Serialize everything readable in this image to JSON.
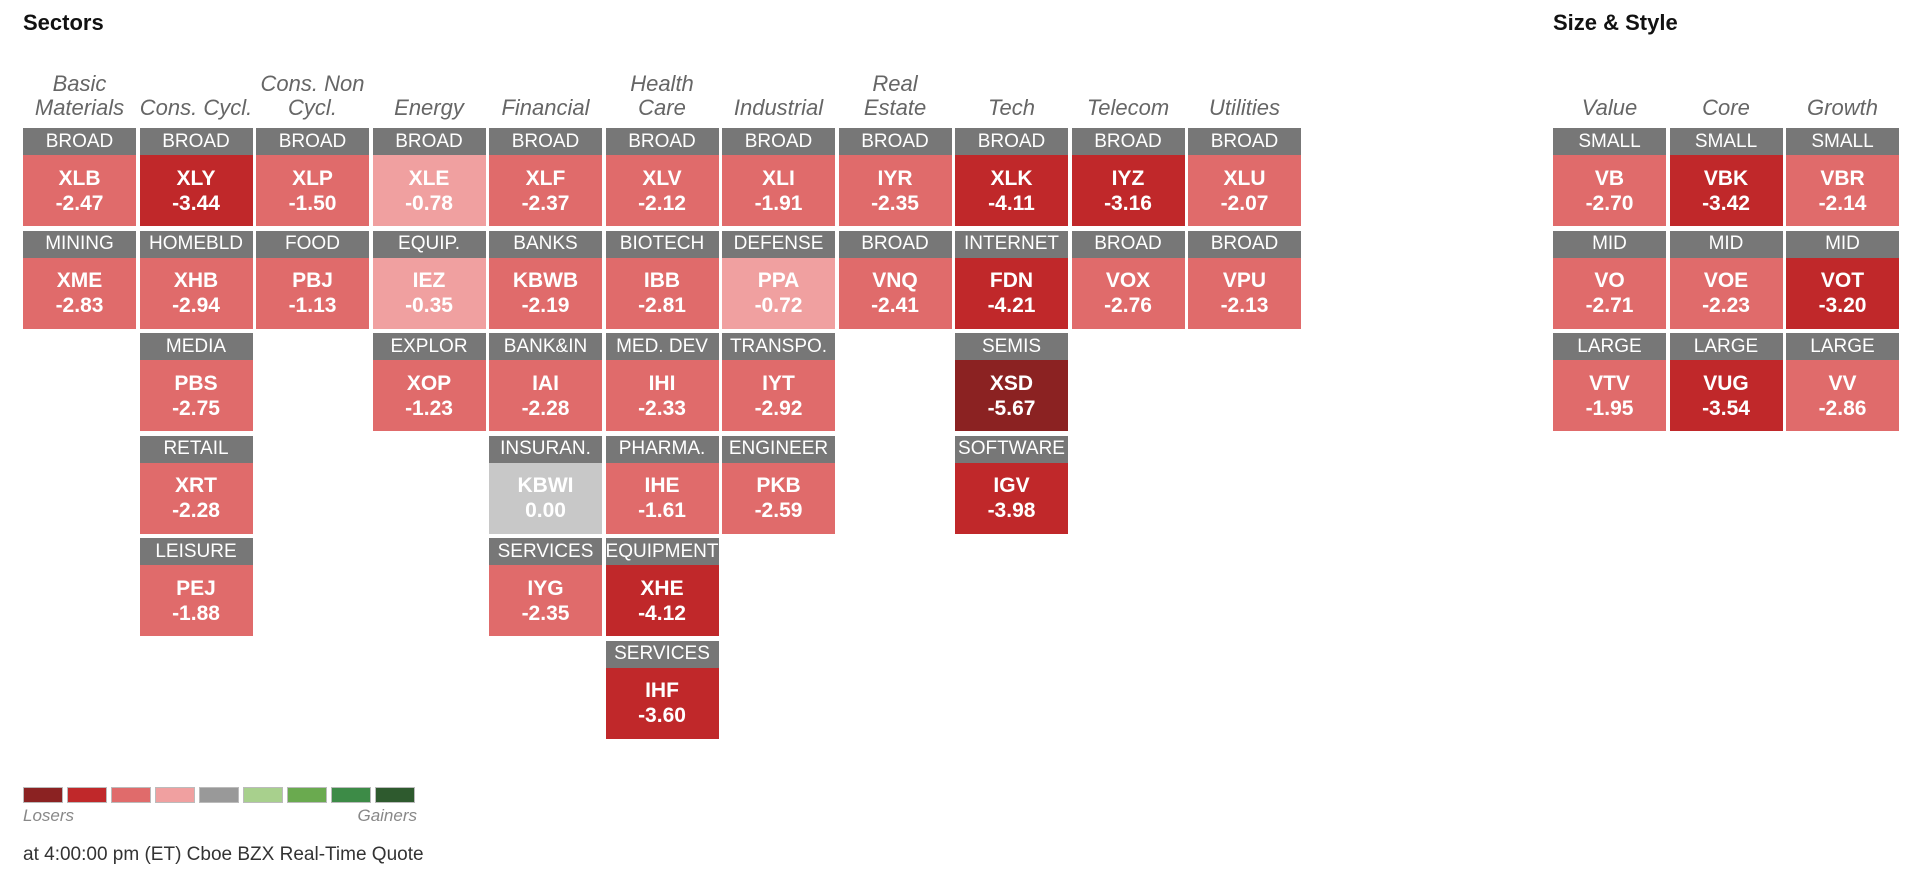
{
  "sectors_title": "Sectors",
  "size_style_title": "Size & Style",
  "sector_columns": [
    {
      "name": "Basic Materials",
      "tiles": [
        {
          "label": "BROAD",
          "ticker": "XLB",
          "change": "-2.47",
          "level": 2
        },
        {
          "label": "MINING",
          "ticker": "XME",
          "change": "-2.83",
          "level": 2
        }
      ]
    },
    {
      "name": "Cons. Cycl.",
      "tiles": [
        {
          "label": "BROAD",
          "ticker": "XLY",
          "change": "-3.44",
          "level": 3
        },
        {
          "label": "HOMEBLD",
          "ticker": "XHB",
          "change": "-2.94",
          "level": 2
        },
        {
          "label": "MEDIA",
          "ticker": "PBS",
          "change": "-2.75",
          "level": 2
        },
        {
          "label": "RETAIL",
          "ticker": "XRT",
          "change": "-2.28",
          "level": 2
        },
        {
          "label": "LEISURE",
          "ticker": "PEJ",
          "change": "-1.88",
          "level": 2
        }
      ]
    },
    {
      "name": "Cons. Non Cycl.",
      "tiles": [
        {
          "label": "BROAD",
          "ticker": "XLP",
          "change": "-1.50",
          "level": 2
        },
        {
          "label": "FOOD",
          "ticker": "PBJ",
          "change": "-1.13",
          "level": 2
        }
      ]
    },
    {
      "name": "Energy",
      "tiles": [
        {
          "label": "BROAD",
          "ticker": "XLE",
          "change": "-0.78",
          "level": 1
        },
        {
          "label": "EQUIP.",
          "ticker": "IEZ",
          "change": "-0.35",
          "level": 1
        },
        {
          "label": "EXPLOR",
          "ticker": "XOP",
          "change": "-1.23",
          "level": 2
        }
      ]
    },
    {
      "name": "Financial",
      "tiles": [
        {
          "label": "BROAD",
          "ticker": "XLF",
          "change": "-2.37",
          "level": 2
        },
        {
          "label": "BANKS",
          "ticker": "KBWB",
          "change": "-2.19",
          "level": 2
        },
        {
          "label": "BANK&IN",
          "ticker": "IAI",
          "change": "-2.28",
          "level": 2
        },
        {
          "label": "INSURAN.",
          "ticker": "KBWI",
          "change": "0.00",
          "level": 0
        },
        {
          "label": "SERVICES",
          "ticker": "IYG",
          "change": "-2.35",
          "level": 2
        }
      ]
    },
    {
      "name": "Health Care",
      "tiles": [
        {
          "label": "BROAD",
          "ticker": "XLV",
          "change": "-2.12",
          "level": 2
        },
        {
          "label": "BIOTECH",
          "ticker": "IBB",
          "change": "-2.81",
          "level": 2
        },
        {
          "label": "MED. DEV",
          "ticker": "IHI",
          "change": "-2.33",
          "level": 2
        },
        {
          "label": "PHARMA.",
          "ticker": "IHE",
          "change": "-1.61",
          "level": 2
        },
        {
          "label": "EQUIPMENT",
          "ticker": "XHE",
          "change": "-4.12",
          "level": 3
        },
        {
          "label": "SERVICES",
          "ticker": "IHF",
          "change": "-3.60",
          "level": 3
        }
      ]
    },
    {
      "name": "Industrial",
      "tiles": [
        {
          "label": "BROAD",
          "ticker": "XLI",
          "change": "-1.91",
          "level": 2
        },
        {
          "label": "DEFENSE",
          "ticker": "PPA",
          "change": "-0.72",
          "level": 1
        },
        {
          "label": "TRANSPO.",
          "ticker": "IYT",
          "change": "-2.92",
          "level": 2
        },
        {
          "label": "ENGINEER",
          "ticker": "PKB",
          "change": "-2.59",
          "level": 2
        }
      ]
    },
    {
      "name": "Real Estate",
      "tiles": [
        {
          "label": "BROAD",
          "ticker": "IYR",
          "change": "-2.35",
          "level": 2
        },
        {
          "label": "BROAD",
          "ticker": "VNQ",
          "change": "-2.41",
          "level": 2
        }
      ]
    },
    {
      "name": "Tech",
      "tiles": [
        {
          "label": "BROAD",
          "ticker": "XLK",
          "change": "-4.11",
          "level": 3
        },
        {
          "label": "INTERNET",
          "ticker": "FDN",
          "change": "-4.21",
          "level": 3
        },
        {
          "label": "SEMIS",
          "ticker": "XSD",
          "change": "-5.67",
          "level": 4
        },
        {
          "label": "SOFTWARE",
          "ticker": "IGV",
          "change": "-3.98",
          "level": 3
        }
      ]
    },
    {
      "name": "Telecom",
      "tiles": [
        {
          "label": "BROAD",
          "ticker": "IYZ",
          "change": "-3.16",
          "level": 3
        },
        {
          "label": "BROAD",
          "ticker": "VOX",
          "change": "-2.76",
          "level": 2
        }
      ]
    },
    {
      "name": "Utilities",
      "tiles": [
        {
          "label": "BROAD",
          "ticker": "XLU",
          "change": "-2.07",
          "level": 2
        },
        {
          "label": "BROAD",
          "ticker": "VPU",
          "change": "-2.13",
          "level": 2
        }
      ]
    }
  ],
  "style_columns": [
    {
      "name": "Value",
      "tiles": [
        {
          "label": "SMALL",
          "ticker": "VB",
          "change": "-2.70",
          "level": 2
        },
        {
          "label": "MID",
          "ticker": "VO",
          "change": "-2.71",
          "level": 2
        },
        {
          "label": "LARGE",
          "ticker": "VTV",
          "change": "-1.95",
          "level": 2
        }
      ]
    },
    {
      "name": "Core",
      "tiles": [
        {
          "label": "SMALL",
          "ticker": "VBK",
          "change": "-3.42",
          "level": 3
        },
        {
          "label": "MID",
          "ticker": "VOE",
          "change": "-2.23",
          "level": 2
        },
        {
          "label": "LARGE",
          "ticker": "VUG",
          "change": "-3.54",
          "level": 3
        }
      ]
    },
    {
      "name": "Growth",
      "tiles": [
        {
          "label": "SMALL",
          "ticker": "VBR",
          "change": "-2.14",
          "level": 2
        },
        {
          "label": "MID",
          "ticker": "VOT",
          "change": "-3.20",
          "level": 3
        },
        {
          "label": "LARGE",
          "ticker": "VV",
          "change": "-2.86",
          "level": 2
        }
      ]
    }
  ],
  "legend": {
    "colors": [
      "#8b2222",
      "#c0282a",
      "#e06b6b",
      "#f0a0a0",
      "#999999",
      "#a8d08d",
      "#6aaa4f",
      "#3d8b47",
      "#2e5a2e"
    ],
    "losers_label": "Losers",
    "gainers_label": "Gainers"
  },
  "footer": "at 4:00:00 pm (ET) Cboe BZX Real-Time Quote"
}
